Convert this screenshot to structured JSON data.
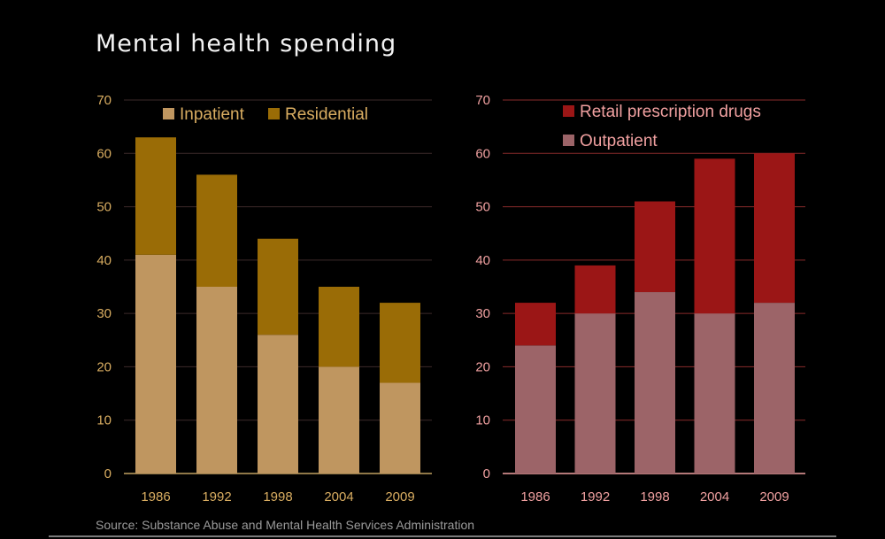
{
  "title": "Mental health spending",
  "source": "Source: Substance Abuse and Mental Health Services Administration",
  "colors": {
    "inpatient": "#bf9660",
    "residential": "#9a6c06",
    "outpatient": "#9c6468",
    "retail": "#9b1616",
    "left_text": "#d9ad61",
    "right_text": "#f0a0a0",
    "left_grid": "#3d2a2a",
    "right_grid": "#8a2b2b",
    "left_axis": "#c0a060",
    "right_axis": "#f0a0a0"
  },
  "chart_data": [
    {
      "type": "bar",
      "stacked": true,
      "categories": [
        "1986",
        "1992",
        "1998",
        "2004",
        "2009"
      ],
      "series": [
        {
          "name": "Inpatient",
          "values": [
            41,
            35,
            26,
            20,
            17
          ]
        },
        {
          "name": "Residential",
          "values": [
            22,
            21,
            18,
            15,
            15
          ]
        }
      ],
      "ylim": [
        0,
        70
      ],
      "yticks": [
        "0",
        "10",
        "20",
        "30",
        "40",
        "50",
        "60",
        "70"
      ],
      "legend": "top-right-horizontal",
      "grid": true
    },
    {
      "type": "bar",
      "stacked": true,
      "categories": [
        "1986",
        "1992",
        "1998",
        "2004",
        "2009"
      ],
      "series": [
        {
          "name": "Outpatient",
          "values": [
            24,
            30,
            34,
            30,
            32
          ]
        },
        {
          "name": "Retail prescription drugs",
          "values": [
            8,
            9,
            17,
            29,
            28
          ]
        }
      ],
      "ylim": [
        0,
        70
      ],
      "yticks": [
        "0",
        "10",
        "20",
        "30",
        "40",
        "50",
        "60",
        "70"
      ],
      "legend": "top-left-vertical",
      "grid": true
    }
  ]
}
